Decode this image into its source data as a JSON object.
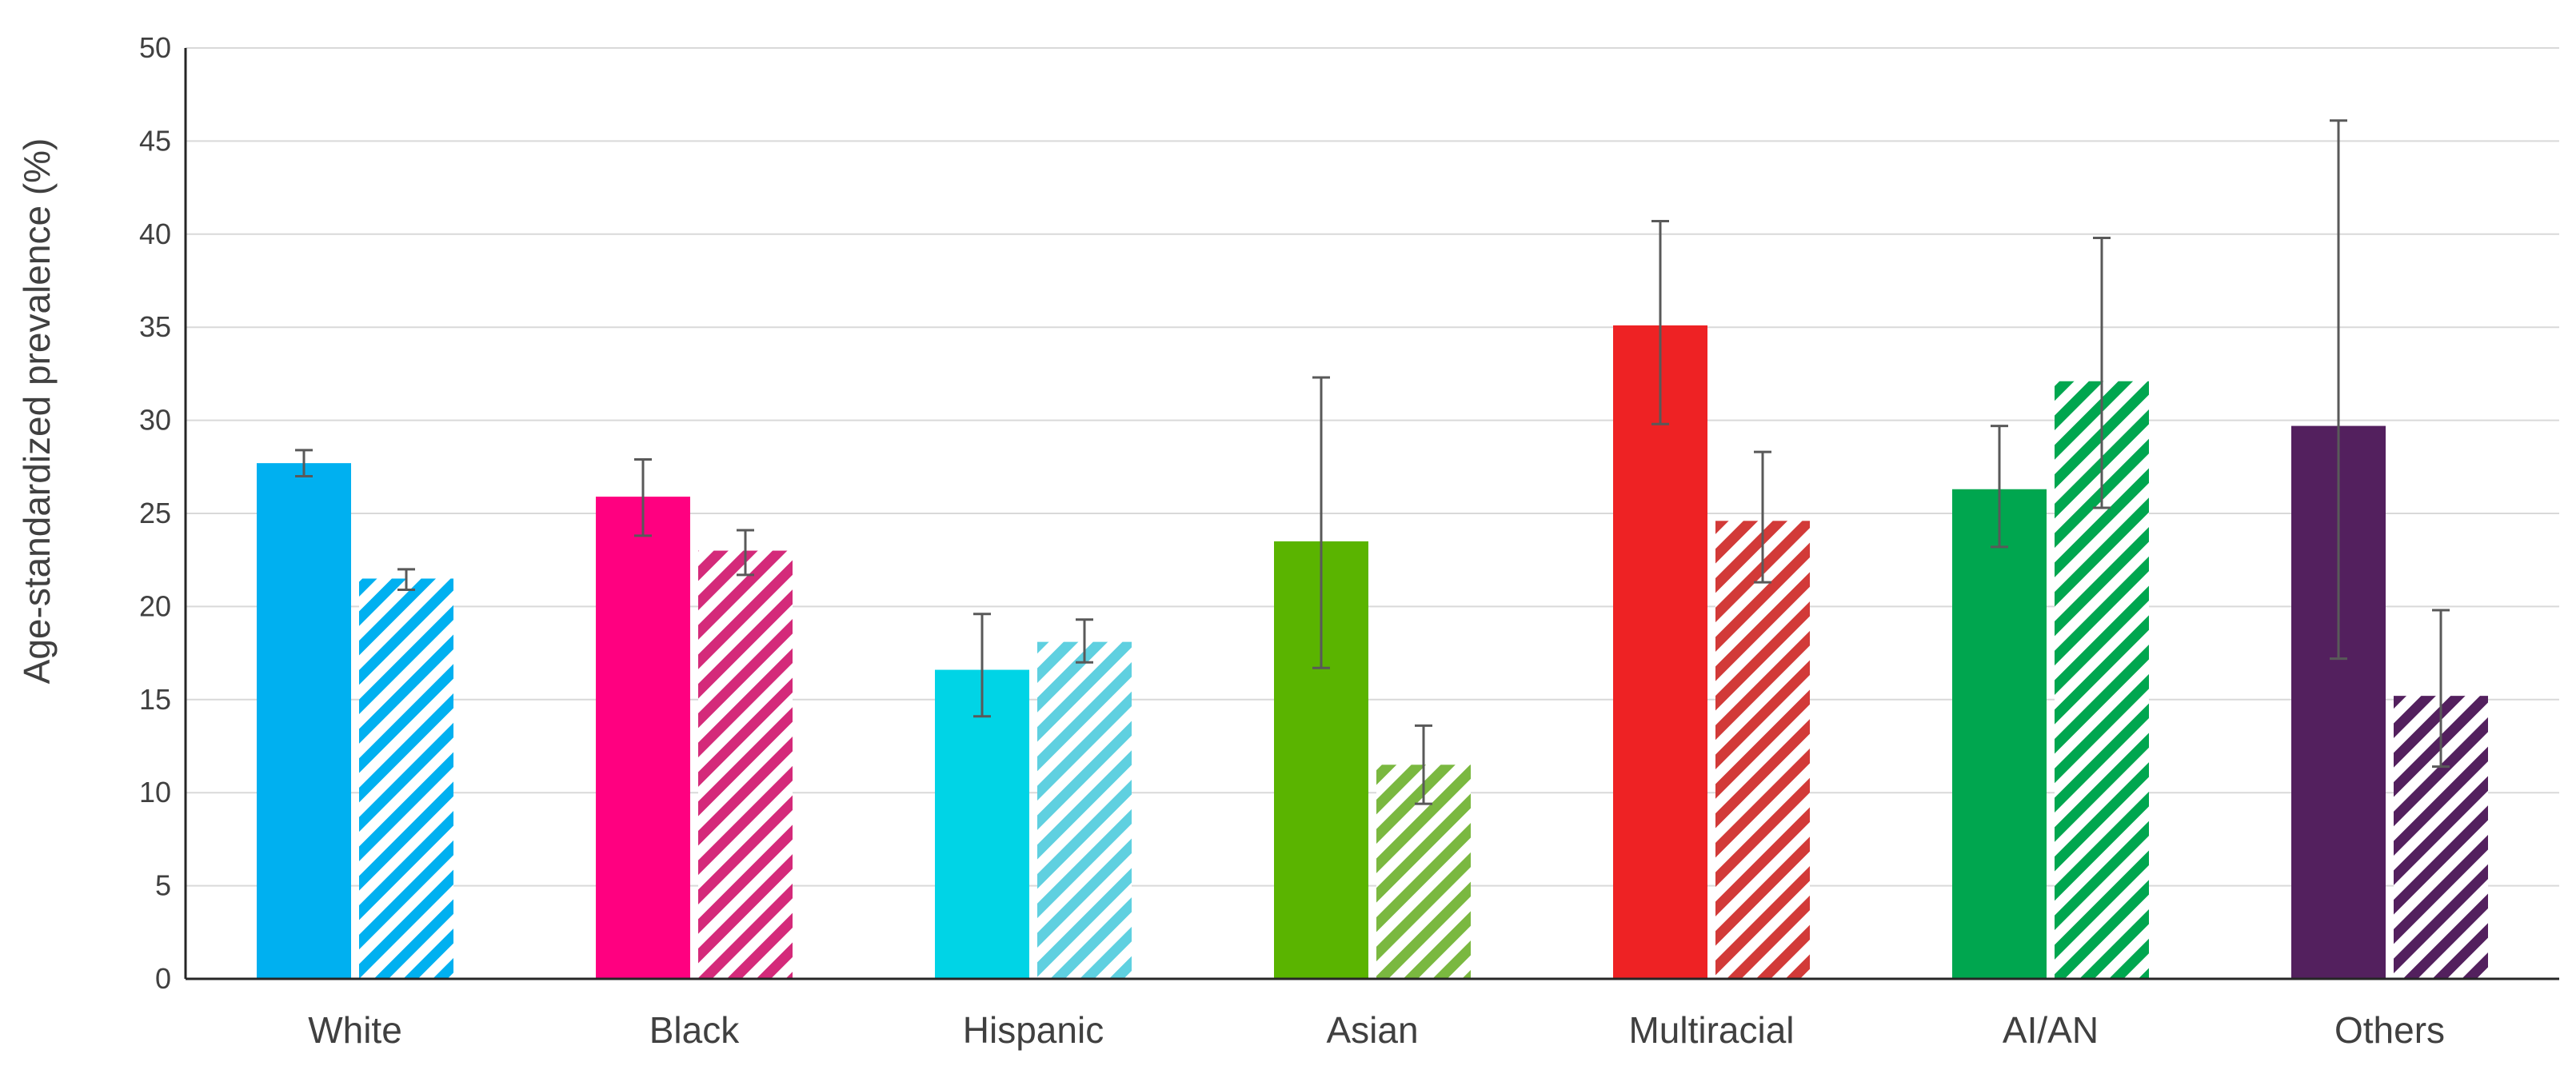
{
  "chart_data": {
    "type": "bar",
    "title": "",
    "xlabel": "",
    "ylabel": "Age-standardized prevalence (%)",
    "ylim": [
      0,
      50
    ],
    "yticks": [
      0,
      5,
      10,
      15,
      20,
      25,
      30,
      35,
      40,
      45,
      50
    ],
    "grid": true,
    "legend": "none",
    "categories": [
      "White",
      "Black",
      "Hispanic",
      "Asian",
      "Multiracial",
      "AI/AN",
      "Others"
    ],
    "colors": [
      "#00b0f0",
      "#ff0080",
      "#00d4e6",
      "#5ab400",
      "#ee2224",
      "#00a64f",
      "#53205e"
    ],
    "hatch_colors": [
      "#00b0f0",
      "#d42a7a",
      "#5fd0e0",
      "#7ab840",
      "#d23a38",
      "#00a64f",
      "#53205e"
    ],
    "series": [
      {
        "style": "solid",
        "values": [
          27.7,
          25.9,
          16.6,
          23.5,
          35.1,
          26.3,
          29.7
        ],
        "error_low": [
          27.0,
          23.8,
          14.1,
          16.7,
          29.8,
          23.2,
          17.2
        ],
        "error_high": [
          28.4,
          27.9,
          19.6,
          32.3,
          40.7,
          29.7,
          46.1
        ]
      },
      {
        "style": "hatched",
        "values": [
          21.5,
          23.0,
          18.1,
          11.5,
          24.6,
          32.1,
          15.2
        ],
        "error_low": [
          20.9,
          21.7,
          17.0,
          9.4,
          21.3,
          25.3,
          11.4
        ],
        "error_high": [
          22.0,
          24.1,
          19.3,
          13.6,
          28.3,
          39.8,
          19.8
        ]
      }
    ]
  }
}
